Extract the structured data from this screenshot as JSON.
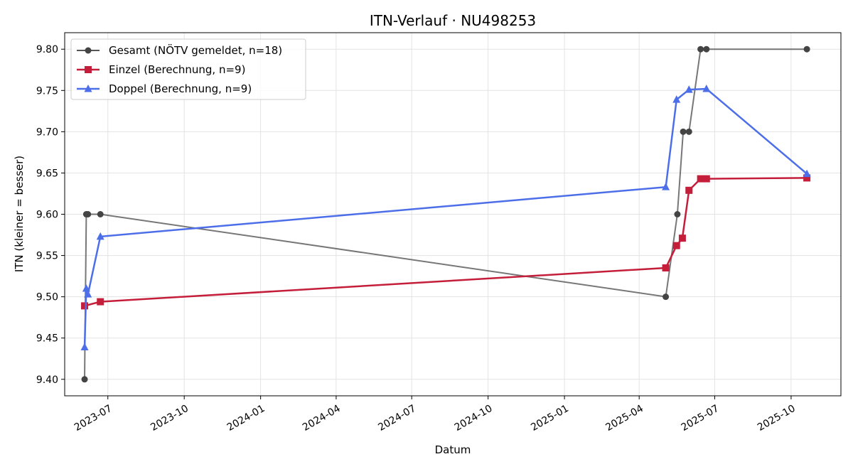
{
  "chart_data": {
    "type": "line",
    "title": "ITN-Verlauf · NU498253",
    "xlabel": "Datum",
    "ylabel": "ITN  (kleiner = besser)",
    "xlim": [
      "2023-05-10",
      "2025-11-30"
    ],
    "ylim": [
      9.38,
      9.82
    ],
    "x_ticks": [
      {
        "date": "2023-07-01",
        "label": "2023-07"
      },
      {
        "date": "2023-10-01",
        "label": "2023-10"
      },
      {
        "date": "2024-01-01",
        "label": "2024-01"
      },
      {
        "date": "2024-04-01",
        "label": "2024-04"
      },
      {
        "date": "2024-07-01",
        "label": "2024-07"
      },
      {
        "date": "2024-10-01",
        "label": "2024-10"
      },
      {
        "date": "2025-01-01",
        "label": "2025-01"
      },
      {
        "date": "2025-04-01",
        "label": "2025-04"
      },
      {
        "date": "2025-07-01",
        "label": "2025-07"
      },
      {
        "date": "2025-10-01",
        "label": "2025-10"
      }
    ],
    "y_ticks": [
      {
        "value": 9.4,
        "label": "9.40"
      },
      {
        "value": 9.45,
        "label": "9.45"
      },
      {
        "value": 9.5,
        "label": "9.50"
      },
      {
        "value": 9.55,
        "label": "9.55"
      },
      {
        "value": 9.6,
        "label": "9.60"
      },
      {
        "value": 9.65,
        "label": "9.65"
      },
      {
        "value": 9.7,
        "label": "9.70"
      },
      {
        "value": 9.75,
        "label": "9.75"
      },
      {
        "value": 9.8,
        "label": "9.80"
      }
    ],
    "grid": true,
    "legend_position": "top-left",
    "series": [
      {
        "name": "Gesamt (NÖTV gemeldet, n=18)",
        "color": "#555555",
        "marker": "circle",
        "points": [
          {
            "x": "2023-06-03",
            "y": 9.4
          },
          {
            "x": "2023-06-05",
            "y": 9.6
          },
          {
            "x": "2023-06-07",
            "y": 9.6
          },
          {
            "x": "2023-06-22",
            "y": 9.6
          },
          {
            "x": "2025-05-03",
            "y": 9.5
          },
          {
            "x": "2025-05-17",
            "y": 9.6
          },
          {
            "x": "2025-05-24",
            "y": 9.7
          },
          {
            "x": "2025-05-31",
            "y": 9.7
          },
          {
            "x": "2025-06-14",
            "y": 9.8
          },
          {
            "x": "2025-06-21",
            "y": 9.8
          },
          {
            "x": "2025-10-20",
            "y": 9.8
          }
        ]
      },
      {
        "name": "Einzel (Berechnung, n=9)",
        "color": "#c41e3a",
        "marker": "square",
        "points": [
          {
            "x": "2023-06-03",
            "y": 9.489
          },
          {
            "x": "2023-06-22",
            "y": 9.494
          },
          {
            "x": "2025-05-03",
            "y": 9.535
          },
          {
            "x": "2025-05-16",
            "y": 9.562
          },
          {
            "x": "2025-05-23",
            "y": 9.571
          },
          {
            "x": "2025-05-31",
            "y": 9.629
          },
          {
            "x": "2025-06-14",
            "y": 9.643
          },
          {
            "x": "2025-06-21",
            "y": 9.643
          },
          {
            "x": "2025-10-20",
            "y": 9.644
          }
        ]
      },
      {
        "name": "Doppel (Berechnung, n=9)",
        "color": "#4c6ee8",
        "marker": "triangle",
        "points": [
          {
            "x": "2023-06-03",
            "y": 9.439
          },
          {
            "x": "2023-06-05",
            "y": 9.51
          },
          {
            "x": "2023-06-07",
            "y": 9.503
          },
          {
            "x": "2023-06-22",
            "y": 9.573
          },
          {
            "x": "2025-05-03",
            "y": 9.633
          },
          {
            "x": "2025-05-16",
            "y": 9.739
          },
          {
            "x": "2025-05-31",
            "y": 9.751
          },
          {
            "x": "2025-06-21",
            "y": 9.752
          },
          {
            "x": "2025-10-20",
            "y": 9.649
          }
        ]
      }
    ]
  }
}
